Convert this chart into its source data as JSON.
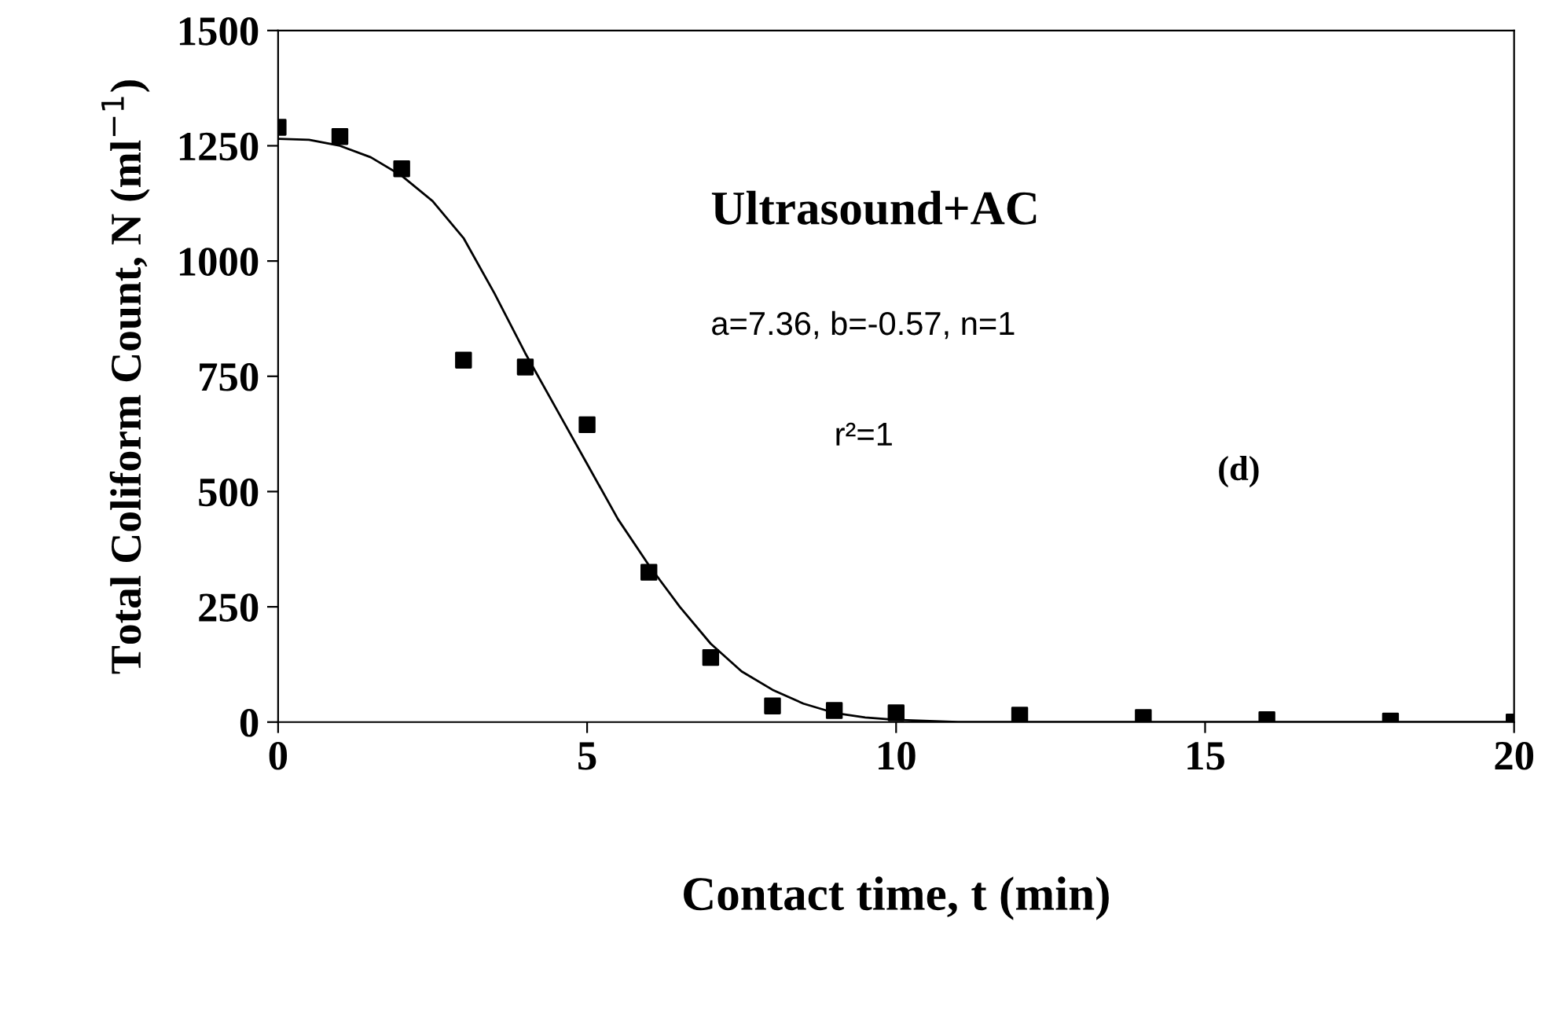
{
  "chart_data": {
    "type": "scatter",
    "xlabel": "Contact time, t (min)",
    "ylabel": "Total Coliform Count, N (ml$^{−1}$)",
    "xlim": [
      0,
      20
    ],
    "xticks": [
      0,
      5,
      10,
      15,
      20
    ],
    "ylim": [
      0,
      1500
    ],
    "yticks": [
      0,
      250,
      500,
      750,
      1000,
      1250,
      1500
    ],
    "grid": false,
    "legend": false,
    "annotations": [
      "Ultrasound+AC",
      "a=7.36, b=-0.57, n=1",
      "r²=1",
      "(d)"
    ],
    "series": [
      {
        "color": "#000000",
        "marker": "square",
        "x": [
          0,
          1,
          2,
          3,
          4,
          5,
          6,
          7,
          8,
          9,
          10,
          12,
          14,
          16,
          18,
          20
        ],
        "values": [
          1290,
          1270,
          1200,
          785,
          770,
          645,
          325,
          140,
          35,
          25,
          20,
          15,
          10,
          5,
          2,
          0
        ]
      },
      {
        "type": "line",
        "color": "#000000",
        "marker": "none",
        "line_style": "solid",
        "x": [
          0,
          0.5,
          1,
          1.5,
          2,
          2.5,
          3,
          3.5,
          4,
          4.5,
          5,
          5.5,
          6,
          6.5,
          7,
          7.5,
          8,
          8.5,
          9,
          9.5,
          10,
          11,
          12,
          14,
          16,
          18,
          20
        ],
        "values": [
          1265,
          1263,
          1250,
          1225,
          1185,
          1130,
          1050,
          930,
          800,
          680,
          560,
          440,
          340,
          250,
          170,
          110,
          70,
          40,
          20,
          10,
          5,
          0,
          0,
          0,
          0,
          0,
          0
        ]
      }
    ]
  }
}
